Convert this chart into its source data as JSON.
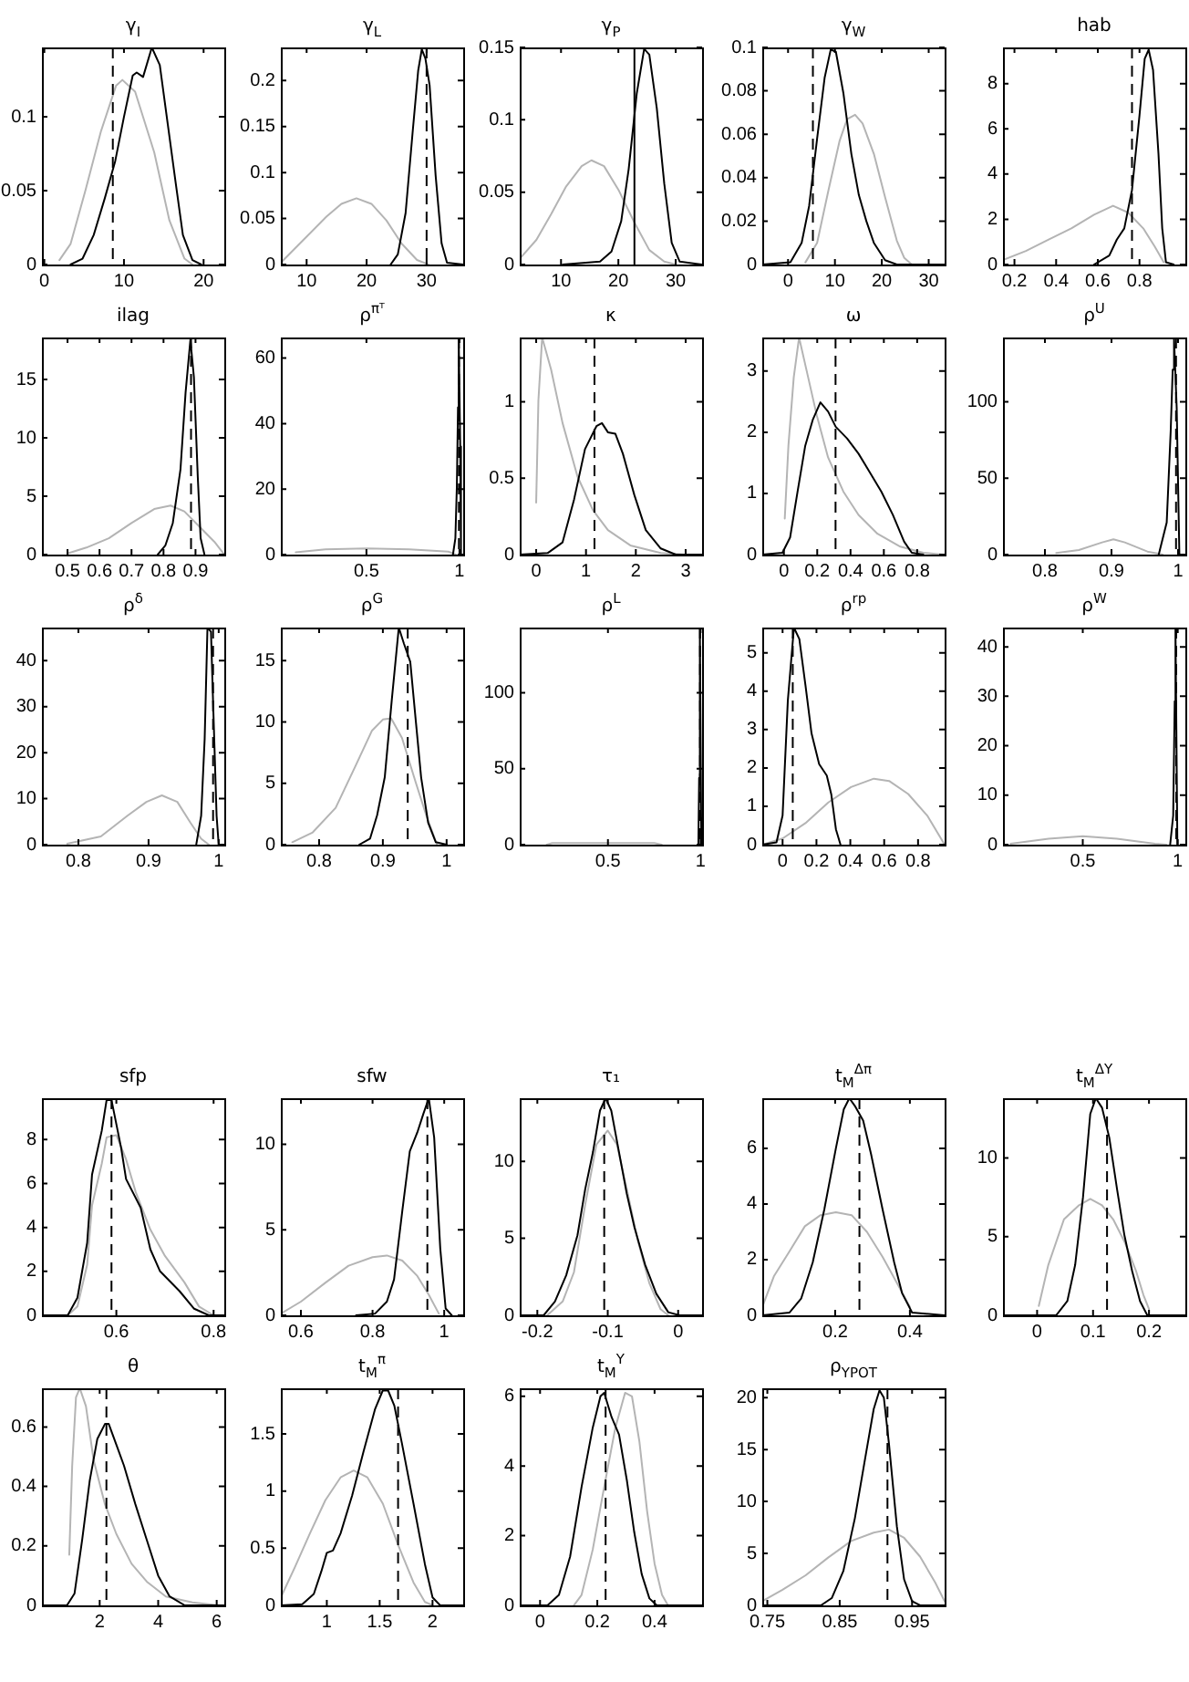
{
  "chart_data": [
    {
      "type": "line",
      "title": "γ$_{I}$",
      "xlim": [
        -0.3,
        22.6
      ],
      "ylim": [
        0,
        0.147
      ],
      "xticks": [
        0,
        10,
        20
      ],
      "yticks": [
        0,
        0.05,
        0.1
      ],
      "ref_lines": [
        {
          "axis": "x",
          "value": 8.6,
          "line_style": "dashed",
          "color": "#000000"
        }
      ],
      "series": [
        {
          "color": "#b4b4b4",
          "x": [
            1.9,
            3.3,
            5.2,
            7.1,
            9.0,
            9.8,
            11.4,
            13.8,
            15.7,
            17.6,
            18.6
          ],
          "values": [
            0.003,
            0.014,
            0.051,
            0.09,
            0.121,
            0.125,
            0.117,
            0.076,
            0.03,
            0.004,
            0
          ]
        },
        {
          "color": "#000000",
          "x": [
            3.3,
            4.8,
            6.2,
            7.6,
            8.9,
            10.0,
            11.1,
            11.6,
            12.4,
            13.5,
            14.5,
            15.5,
            16.5,
            17.4,
            18.6,
            19.7
          ],
          "values": [
            0,
            0.004,
            0.02,
            0.045,
            0.07,
            0.1,
            0.128,
            0.13,
            0.127,
            0.147,
            0.135,
            0.095,
            0.055,
            0.02,
            0.003,
            0
          ]
        }
      ]
    },
    {
      "type": "line",
      "title": "γ$_{L}$",
      "xlim": [
        5.7,
        36.1
      ],
      "ylim": [
        0,
        0.236
      ],
      "xticks": [
        10,
        20,
        30
      ],
      "yticks": [
        0,
        0.05,
        0.1,
        0.15,
        0.2
      ],
      "ref_lines": [
        {
          "axis": "x",
          "value": 30.0,
          "line_style": "dashed",
          "color": "#000000"
        }
      ],
      "series": [
        {
          "color": "#b4b4b4",
          "x": [
            5.7,
            9.5,
            13.3,
            15.8,
            18.3,
            20.8,
            23.3,
            25.8,
            28.4,
            30.3
          ],
          "values": [
            0.002,
            0.027,
            0.052,
            0.066,
            0.072,
            0.066,
            0.048,
            0.023,
            0.005,
            0
          ]
        },
        {
          "color": "#000000",
          "x": [
            24.0,
            25.2,
            26.5,
            27.7,
            28.6,
            29.2,
            29.8,
            30.5,
            31.5,
            32.5,
            33.4,
            36.1
          ],
          "values": [
            0,
            0.011,
            0.056,
            0.146,
            0.211,
            0.234,
            0.224,
            0.195,
            0.097,
            0.023,
            0.002,
            0
          ]
        }
      ]
    },
    {
      "type": "line",
      "title": "γ$_{P}$",
      "xlim": [
        2.8,
        34.6
      ],
      "ylim": [
        0,
        0.15
      ],
      "xticks": [
        10,
        20,
        30
      ],
      "yticks": [
        0,
        0.05,
        0.1,
        0.15
      ],
      "ref_lines": [
        {
          "axis": "x",
          "value": 22.8,
          "line_style": "solid",
          "color": "#000000"
        }
      ],
      "series": [
        {
          "color": "#b4b4b4",
          "x": [
            2.8,
            5.7,
            8.3,
            10.9,
            13.6,
            15.3,
            17.5,
            20.1,
            22.8,
            25.4,
            28.0,
            30.0
          ],
          "values": [
            0.004,
            0.017,
            0.035,
            0.054,
            0.068,
            0.072,
            0.068,
            0.051,
            0.029,
            0.01,
            0.002,
            0
          ]
        },
        {
          "color": "#000000",
          "x": [
            10.3,
            16.8,
            18.8,
            20.5,
            21.8,
            23.2,
            24.5,
            25.4,
            26.7,
            28.0,
            29.3,
            30.7,
            34.6
          ],
          "values": [
            0,
            0.002,
            0.009,
            0.03,
            0.066,
            0.118,
            0.149,
            0.145,
            0.108,
            0.056,
            0.015,
            0.002,
            0
          ]
        }
      ]
    },
    {
      "type": "line",
      "title": "γ$_{W}$",
      "xlim": [
        -5.5,
        33.4
      ],
      "ylim": [
        0,
        0.1
      ],
      "xticks": [
        0,
        10,
        20,
        30
      ],
      "yticks": [
        0,
        0.02,
        0.04,
        0.06,
        0.08,
        0.1
      ],
      "ref_lines": [
        {
          "axis": "x",
          "value": 5.3,
          "line_style": "dashed",
          "color": "#000000"
        }
      ],
      "series": [
        {
          "color": "#b4b4b4",
          "x": [
            3.7,
            6.2,
            8.6,
            11.0,
            12.6,
            14.3,
            15.9,
            18.3,
            20.7,
            23.2,
            24.8,
            26.4
          ],
          "values": [
            0.001,
            0.01,
            0.034,
            0.057,
            0.067,
            0.069,
            0.065,
            0.051,
            0.031,
            0.011,
            0.003,
            0
          ]
        },
        {
          "color": "#000000",
          "x": [
            -5.5,
            0.5,
            2.9,
            4.5,
            6.2,
            7.8,
            9.1,
            10.2,
            11.8,
            13.5,
            15.1,
            16.7,
            18.3,
            20.7,
            23.2,
            33.4
          ],
          "values": [
            0,
            0.001,
            0.01,
            0.027,
            0.058,
            0.086,
            0.099,
            0.098,
            0.079,
            0.051,
            0.032,
            0.02,
            0.01,
            0.002,
            0,
            0
          ]
        }
      ]
    },
    {
      "type": "line",
      "title": "hab",
      "xlim": [
        0.145,
        1.02
      ],
      "ylim": [
        0,
        9.6
      ],
      "xticks": [
        0.2,
        0.4,
        0.6,
        0.8
      ],
      "yticks": [
        0,
        2,
        4,
        6,
        8
      ],
      "ref_lines": [
        {
          "axis": "x",
          "value": 0.764,
          "line_style": "dashed",
          "color": "#000000"
        }
      ],
      "series": [
        {
          "color": "#b4b4b4",
          "x": [
            0.145,
            0.255,
            0.364,
            0.473,
            0.582,
            0.673,
            0.745,
            0.818,
            0.873,
            0.916
          ],
          "values": [
            0.2,
            0.6,
            1.1,
            1.6,
            2.2,
            2.6,
            2.3,
            1.6,
            0.8,
            0.1
          ]
        },
        {
          "color": "#000000",
          "x": [
            0.582,
            0.655,
            0.691,
            0.727,
            0.764,
            0.8,
            0.825,
            0.844,
            0.865,
            0.891,
            0.909,
            0.927,
            0.964
          ],
          "values": [
            0,
            0.4,
            1.1,
            1.6,
            3.3,
            6.6,
            9.1,
            9.5,
            8.6,
            4.9,
            1.6,
            0.1,
            0
          ]
        }
      ]
    },
    {
      "type": "line",
      "title": "ilag",
      "xlim": [
        0.42,
        0.99
      ],
      "ylim": [
        0,
        18.6
      ],
      "xticks": [
        0.5,
        0.6,
        0.7,
        0.8,
        0.9
      ],
      "yticks": [
        0,
        5,
        10,
        15
      ],
      "ref_lines": [
        {
          "axis": "x",
          "value": 0.886,
          "line_style": "dashed",
          "color": "#000000"
        }
      ],
      "series": [
        {
          "color": "#b4b4b4",
          "x": [
            0.5,
            0.559,
            0.629,
            0.7,
            0.771,
            0.822,
            0.865,
            0.912,
            0.959,
            0.987
          ],
          "values": [
            0.1,
            0.6,
            1.4,
            2.7,
            3.9,
            4.2,
            3.7,
            2.4,
            1.1,
            0.1
          ]
        },
        {
          "color": "#000000",
          "x": [
            0.782,
            0.806,
            0.829,
            0.853,
            0.869,
            0.884,
            0.895,
            0.907,
            0.916,
            0.928
          ],
          "values": [
            0,
            0.8,
            2.7,
            7.3,
            13.9,
            18.4,
            15.2,
            6.7,
            1.4,
            0
          ]
        }
      ]
    },
    {
      "type": "line",
      "title": "ρ$^{πᵀ}$",
      "xlim": [
        0.04,
        1.02
      ],
      "ylim": [
        0,
        66.3
      ],
      "xticks": [
        0.5,
        1
      ],
      "yticks": [
        0,
        20,
        40,
        60
      ],
      "ref_lines": [
        {
          "axis": "x",
          "value": 0.997,
          "line_style": "dashed",
          "color": "#000000"
        }
      ],
      "series": [
        {
          "color": "#b4b4b4",
          "x": [
            0.12,
            0.28,
            0.5,
            0.73,
            0.94,
            0.98
          ],
          "values": [
            0.7,
            1.6,
            1.9,
            1.6,
            0.9,
            0
          ]
        },
        {
          "color": "#000000",
          "x": [
            0.965,
            0.978,
            0.986,
            0.992,
            0.996,
            1.004,
            1.008
          ],
          "values": [
            0,
            5,
            21,
            45,
            66,
            33,
            0
          ]
        }
      ]
    },
    {
      "type": "line",
      "title": "κ",
      "xlim": [
        -0.33,
        3.33
      ],
      "ylim": [
        0,
        1.42
      ],
      "xticks": [
        0,
        1,
        2,
        3
      ],
      "yticks": [
        0,
        0.5,
        1
      ],
      "ref_lines": [
        {
          "axis": "x",
          "value": 1.17,
          "line_style": "dashed",
          "color": "#000000"
        }
      ],
      "series": [
        {
          "color": "#b4b4b4",
          "x": [
            0,
            0.045,
            0.12,
            0.3,
            0.53,
            0.83,
            1.14,
            1.44,
            1.89,
            2.5,
            2.95
          ],
          "values": [
            0.34,
            1.01,
            1.42,
            1.21,
            0.86,
            0.51,
            0.29,
            0.16,
            0.06,
            0.01,
            0
          ]
        },
        {
          "color": "#000000",
          "x": [
            -0.33,
            0.23,
            0.53,
            0.76,
            0.98,
            1.21,
            1.32,
            1.44,
            1.59,
            1.74,
            1.97,
            2.2,
            2.5,
            2.8,
            3.33
          ],
          "values": [
            0,
            0.01,
            0.08,
            0.36,
            0.69,
            0.84,
            0.86,
            0.8,
            0.79,
            0.66,
            0.39,
            0.16,
            0.04,
            0,
            0
          ]
        }
      ]
    },
    {
      "type": "line",
      "title": "ω",
      "xlim": [
        -0.13,
        0.965
      ],
      "ylim": [
        0,
        3.55
      ],
      "xticks": [
        0,
        0.2,
        0.4,
        0.6,
        0.8
      ],
      "yticks": [
        0,
        1,
        2,
        3
      ],
      "ref_lines": [
        {
          "axis": "x",
          "value": 0.31,
          "line_style": "dashed",
          "color": "#000000"
        }
      ],
      "series": [
        {
          "color": "#b4b4b4",
          "x": [
            0.005,
            0.027,
            0.059,
            0.091,
            0.137,
            0.197,
            0.265,
            0.357,
            0.448,
            0.562,
            0.699,
            0.837,
            0.951
          ],
          "values": [
            0.59,
            1.78,
            2.9,
            3.55,
            3.0,
            2.28,
            1.59,
            1.03,
            0.65,
            0.34,
            0.13,
            0.03,
            0
          ]
        },
        {
          "color": "#000000",
          "x": [
            -0.13,
            -0.009,
            0.037,
            0.082,
            0.128,
            0.174,
            0.219,
            0.265,
            0.311,
            0.379,
            0.448,
            0.517,
            0.585,
            0.654,
            0.722,
            0.768,
            0.837
          ],
          "values": [
            0,
            0.03,
            0.28,
            1.03,
            1.78,
            2.21,
            2.49,
            2.34,
            2.09,
            1.9,
            1.65,
            1.34,
            1.03,
            0.65,
            0.21,
            0.03,
            0
          ]
        }
      ]
    },
    {
      "type": "line",
      "title": "ρ$^{U}$",
      "xlim": [
        0.737,
        1.011
      ],
      "ylim": [
        0,
        142
      ],
      "xticks": [
        0.8,
        0.9,
        1
      ],
      "yticks": [
        0,
        50,
        100
      ],
      "ref_lines": [
        {
          "axis": "x",
          "value": 0.997,
          "line_style": "dashed",
          "color": "#000000"
        }
      ],
      "series": [
        {
          "color": "#b4b4b4",
          "x": [
            0.817,
            0.851,
            0.886,
            0.903,
            0.92,
            0.954,
            0.977
          ],
          "values": [
            1,
            3,
            8,
            10,
            8,
            2,
            0
          ]
        },
        {
          "color": "#000000",
          "x": [
            0.971,
            0.983,
            0.989,
            0.992,
            0.994,
            0.998,
            1.002
          ],
          "values": [
            0,
            21,
            81,
            121,
            141,
            96,
            0
          ]
        }
      ]
    },
    {
      "type": "line",
      "title": "ρ$^{δ}$",
      "xlim": [
        0.748,
        1.008
      ],
      "ylim": [
        0,
        47.2
      ],
      "xticks": [
        0.8,
        0.9,
        1
      ],
      "yticks": [
        0,
        10,
        20,
        30,
        40
      ],
      "ref_lines": [
        {
          "axis": "x",
          "value": 0.992,
          "line_style": "dashed",
          "color": "#000000"
        }
      ],
      "series": [
        {
          "color": "#b4b4b4",
          "x": [
            0.784,
            0.832,
            0.87,
            0.897,
            0.919,
            0.941,
            0.96,
            0.975,
            0.986
          ],
          "values": [
            0.2,
            1.8,
            6.3,
            9.3,
            10.7,
            9.3,
            4.7,
            1.3,
            0
          ]
        },
        {
          "color": "#000000",
          "x": [
            0.968,
            0.975,
            0.98,
            0.984,
            0.989,
            0.992,
            0.997,
            1.0
          ],
          "values": [
            0,
            6.3,
            23,
            47.2,
            46.3,
            31,
            6.3,
            0
          ]
        }
      ]
    },
    {
      "type": "line",
      "title": "ρ$^{G}$",
      "xlim": [
        0.74,
        1.026
      ],
      "ylim": [
        0,
        17.7
      ],
      "xticks": [
        0.8,
        0.9,
        1
      ],
      "yticks": [
        0,
        5,
        10,
        15
      ],
      "ref_lines": [
        {
          "axis": "x",
          "value": 0.939,
          "line_style": "dashed",
          "color": "#000000"
        }
      ],
      "series": [
        {
          "color": "#b4b4b4",
          "x": [
            0.758,
            0.79,
            0.826,
            0.857,
            0.883,
            0.9,
            0.913,
            0.93,
            0.952,
            0.968,
            0.985
          ],
          "values": [
            0.2,
            1.0,
            3.0,
            6.4,
            9.3,
            10.2,
            10.3,
            8.7,
            5.0,
            2.4,
            0
          ]
        },
        {
          "color": "#000000",
          "x": [
            0.863,
            0.88,
            0.891,
            0.903,
            0.914,
            0.925,
            0.933,
            0.943,
            0.952,
            0.96,
            0.971,
            0.983,
            1.0
          ],
          "values": [
            0,
            0.5,
            2.4,
            5.5,
            11.8,
            17.7,
            16.4,
            14.9,
            9.9,
            5.5,
            1.8,
            0.2,
            0
          ]
        }
      ]
    },
    {
      "type": "line",
      "title": "ρ$^{L}$",
      "xlim": [
        0.024,
        1.008
      ],
      "ylim": [
        0,
        143
      ],
      "xticks": [
        0.5,
        1
      ],
      "yticks": [
        0,
        50,
        100
      ],
      "ref_lines": [
        {
          "axis": "x",
          "value": 0.997,
          "line_style": "dashed",
          "color": "#000000"
        }
      ],
      "series": [
        {
          "color": "#b4b4b4",
          "x": [
            0.17,
            0.2,
            0.5,
            0.75,
            0.79
          ],
          "values": [
            0,
            1,
            1,
            1,
            0
          ]
        },
        {
          "color": "#000000",
          "x": [
            0.988,
            0.992,
            0.996,
            1.004
          ],
          "values": [
            0,
            44,
            143,
            0
          ]
        }
      ]
    },
    {
      "type": "line",
      "title": "ρ$^{rp}$",
      "xlim": [
        -0.12,
        0.957
      ],
      "ylim": [
        0,
        5.66
      ],
      "xticks": [
        0,
        0.2,
        0.4,
        0.6,
        0.8
      ],
      "yticks": [
        0,
        1,
        2,
        3,
        4,
        5
      ],
      "ref_lines": [
        {
          "axis": "x",
          "value": 0.06,
          "line_style": "dashed",
          "color": "#000000"
        }
      ],
      "series": [
        {
          "color": "#b4b4b4",
          "x": [
            -0.12,
            0,
            0.135,
            0.27,
            0.404,
            0.539,
            0.629,
            0.742,
            0.854,
            0.957
          ],
          "values": [
            0,
            0.16,
            0.56,
            1.1,
            1.5,
            1.72,
            1.66,
            1.32,
            0.76,
            0
          ]
        },
        {
          "color": "#000000",
          "x": [
            -0.12,
            -0.036,
            0,
            0.031,
            0.067,
            0.099,
            0.135,
            0.171,
            0.216,
            0.261,
            0.288,
            0.315,
            0.342
          ],
          "values": [
            0,
            0.06,
            0.76,
            3.76,
            5.66,
            5.36,
            4.16,
            2.9,
            2.1,
            1.8,
            1.3,
            0.4,
            0
          ]
        }
      ]
    },
    {
      "type": "line",
      "title": "ρ$^{W}$",
      "xlim": [
        0.08,
        1.04
      ],
      "ylim": [
        0,
        43.9
      ],
      "xticks": [
        0.5,
        1
      ],
      "yticks": [
        0,
        10,
        20,
        30,
        40
      ],
      "ref_lines": [
        {
          "axis": "x",
          "value": 0.992,
          "line_style": "dashed",
          "color": "#000000"
        }
      ],
      "series": [
        {
          "color": "#b4b4b4",
          "x": [
            0.12,
            0.32,
            0.5,
            0.68,
            0.88,
            0.94
          ],
          "values": [
            0.2,
            1.2,
            1.7,
            1.2,
            0.2,
            0
          ]
        },
        {
          "color": "#000000",
          "x": [
            0.96,
            0.976,
            0.984,
            0.988,
            0.998
          ],
          "values": [
            0,
            5.9,
            29,
            43.9,
            0
          ]
        }
      ]
    },
    {
      "type": "line",
      "title": "sfp",
      "xlim": [
        0.447,
        0.822
      ],
      "ylim": [
        0,
        9.88
      ],
      "xticks": [
        0.6,
        0.8
      ],
      "yticks": [
        0,
        2,
        4,
        6,
        8
      ],
      "ref_lines": [
        {
          "axis": "x",
          "value": 0.59,
          "line_style": "dashed",
          "color": "#000000"
        }
      ],
      "series": [
        {
          "color": "#b4b4b4",
          "x": [
            0.5,
            0.52,
            0.54,
            0.55,
            0.57,
            0.58,
            0.6,
            0.62,
            0.64,
            0.67,
            0.7,
            0.74,
            0.77,
            0.8
          ],
          "values": [
            0,
            0.4,
            2.3,
            5.0,
            6.9,
            8.1,
            8.2,
            7.1,
            5.6,
            3.9,
            2.7,
            1.5,
            0.4,
            0
          ]
        },
        {
          "color": "#000000",
          "x": [
            0.447,
            0.5,
            0.52,
            0.54,
            0.55,
            0.57,
            0.58,
            0.59,
            0.61,
            0.62,
            0.65,
            0.67,
            0.69,
            0.73,
            0.76,
            0.79,
            0.822
          ],
          "values": [
            0,
            0,
            0.8,
            3.3,
            6.4,
            8.4,
            9.8,
            9.8,
            7.6,
            6.2,
            4.9,
            3.0,
            2.0,
            1.1,
            0.3,
            0,
            0
          ]
        }
      ]
    },
    {
      "type": "line",
      "title": "sfw",
      "xlim": [
        0.544,
        1.053
      ],
      "ylim": [
        0,
        12.7
      ],
      "xticks": [
        0.6,
        0.8,
        1
      ],
      "yticks": [
        0,
        5,
        10
      ],
      "ref_lines": [
        {
          "axis": "x",
          "value": 0.953,
          "line_style": "dashed",
          "color": "#000000"
        }
      ],
      "series": [
        {
          "color": "#b4b4b4",
          "x": [
            0.544,
            0.6,
            0.668,
            0.733,
            0.8,
            0.84,
            0.883,
            0.925,
            0.957,
            0.985
          ],
          "values": [
            0.1,
            0.8,
            1.9,
            2.9,
            3.4,
            3.5,
            3.2,
            2.3,
            1.2,
            0.1
          ]
        },
        {
          "color": "#000000",
          "x": [
            0.754,
            0.807,
            0.84,
            0.86,
            0.883,
            0.904,
            0.925,
            0.942,
            0.957,
            0.972,
            0.989,
            1.004,
            1.021
          ],
          "values": [
            0,
            0.1,
            0.8,
            2.1,
            6.1,
            9.6,
            10.7,
            11.8,
            12.7,
            10.4,
            3.9,
            0.4,
            0
          ]
        }
      ]
    },
    {
      "type": "line",
      "title": "τ₁",
      "xlim": [
        -0.225,
        0.034
      ],
      "ylim": [
        0,
        14.1
      ],
      "xticks": [
        -0.2,
        -0.1,
        0
      ],
      "yticks": [
        0,
        5,
        10
      ],
      "ref_lines": [
        {
          "axis": "x",
          "value": -0.105,
          "line_style": "dashed",
          "color": "#000000"
        }
      ],
      "series": [
        {
          "color": "#b4b4b4",
          "x": [
            -0.186,
            -0.164,
            -0.148,
            -0.132,
            -0.116,
            -0.1,
            -0.087,
            -0.073,
            -0.057,
            -0.041,
            -0.025,
            -0.014
          ],
          "values": [
            0,
            0.9,
            2.8,
            7.2,
            11.1,
            12.0,
            11.1,
            8.2,
            4.8,
            2.1,
            0.4,
            0
          ]
        },
        {
          "color": "#000000",
          "x": [
            -0.225,
            -0.191,
            -0.175,
            -0.159,
            -0.143,
            -0.132,
            -0.121,
            -0.111,
            -0.103,
            -0.095,
            -0.084,
            -0.073,
            -0.062,
            -0.047,
            -0.031,
            -0.014,
            0.002,
            0.034
          ],
          "values": [
            0,
            0,
            0.9,
            2.6,
            5.2,
            8.2,
            10.6,
            13.3,
            14.1,
            13.3,
            10.6,
            7.9,
            5.7,
            3.3,
            1.4,
            0.2,
            0,
            0
          ]
        }
      ]
    },
    {
      "type": "line",
      "title": "t$_{M}$$^{Δπ}$",
      "xlim": [
        0.005,
        0.493
      ],
      "ylim": [
        0,
        7.8
      ],
      "xticks": [
        0.2,
        0.4
      ],
      "yticks": [
        0,
        2,
        4,
        6
      ],
      "ref_lines": [
        {
          "axis": "x",
          "value": 0.265,
          "line_style": "dashed",
          "color": "#000000"
        }
      ],
      "series": [
        {
          "color": "#b4b4b4",
          "x": [
            0.005,
            0.036,
            0.078,
            0.119,
            0.161,
            0.202,
            0.244,
            0.285,
            0.327,
            0.368,
            0.4
          ],
          "values": [
            0.3,
            1.4,
            2.3,
            3.2,
            3.6,
            3.7,
            3.6,
            3.0,
            2.1,
            1.1,
            0.3
          ]
        },
        {
          "color": "#000000",
          "x": [
            0.005,
            0.078,
            0.109,
            0.14,
            0.171,
            0.202,
            0.223,
            0.238,
            0.254,
            0.275,
            0.296,
            0.327,
            0.358,
            0.379,
            0.406,
            0.493
          ],
          "values": [
            0,
            0.1,
            0.6,
            1.9,
            3.8,
            6.0,
            7.4,
            7.8,
            7.5,
            7.0,
            5.8,
            3.8,
            1.9,
            0.8,
            0.1,
            0
          ]
        }
      ]
    },
    {
      "type": "line",
      "title": "t$_{M}$$^{ΔY}$",
      "xlim": [
        -0.061,
        0.265
      ],
      "ylim": [
        0,
        13.8
      ],
      "xticks": [
        0,
        0.1,
        0.2
      ],
      "yticks": [
        0,
        5,
        10
      ],
      "ref_lines": [
        {
          "axis": "x",
          "value": 0.125,
          "line_style": "dashed",
          "color": "#000000"
        }
      ],
      "series": [
        {
          "color": "#b4b4b4",
          "x": [
            0.003,
            0.02,
            0.048,
            0.075,
            0.095,
            0.116,
            0.136,
            0.156,
            0.177,
            0.19,
            0.2
          ],
          "values": [
            0.6,
            3.2,
            6.1,
            7.0,
            7.4,
            7.0,
            6.1,
            4.7,
            2.8,
            1.3,
            0.4
          ]
        },
        {
          "color": "#000000",
          "x": [
            -0.061,
            0.034,
            0.054,
            0.068,
            0.082,
            0.095,
            0.105,
            0.116,
            0.129,
            0.143,
            0.156,
            0.17,
            0.184,
            0.197,
            0.265
          ],
          "values": [
            0,
            0,
            0.9,
            3.2,
            7.5,
            12.8,
            13.8,
            13.2,
            11.3,
            8.0,
            5.1,
            2.8,
            0.9,
            0,
            0
          ]
        }
      ]
    },
    {
      "type": "line",
      "title": "θ",
      "xlim": [
        0.026,
        6.26
      ],
      "ylim": [
        0,
        0.73
      ],
      "xticks": [
        2,
        4,
        6
      ],
      "yticks": [
        0,
        0.2,
        0.4,
        0.6
      ],
      "ref_lines": [
        {
          "axis": "x",
          "value": 2.23,
          "line_style": "dashed",
          "color": "#000000"
        }
      ],
      "series": [
        {
          "color": "#b4b4b4",
          "x": [
            0.96,
            1.06,
            1.19,
            1.32,
            1.53,
            1.79,
            2.18,
            2.57,
            3.09,
            3.61,
            4.26,
            5.17,
            6.08
          ],
          "values": [
            0.17,
            0.47,
            0.7,
            0.73,
            0.67,
            0.49,
            0.34,
            0.24,
            0.14,
            0.08,
            0.03,
            0.01,
            0
          ]
        },
        {
          "color": "#000000",
          "x": [
            0.03,
            0.88,
            1.14,
            1.4,
            1.66,
            1.92,
            2.18,
            2.31,
            2.57,
            2.83,
            3.22,
            3.61,
            4.0,
            4.39,
            4.91,
            6.26
          ],
          "values": [
            0,
            0,
            0.04,
            0.22,
            0.42,
            0.56,
            0.61,
            0.61,
            0.54,
            0.47,
            0.34,
            0.22,
            0.1,
            0.03,
            0,
            0
          ]
        }
      ]
    },
    {
      "type": "line",
      "title": "t$_{M}$$^{π}$",
      "xlim": [
        0.565,
        2.29
      ],
      "ylim": [
        0,
        1.9
      ],
      "xticks": [
        1,
        1.5,
        2
      ],
      "yticks": [
        0,
        0.5,
        1,
        1.5
      ],
      "ref_lines": [
        {
          "axis": "x",
          "value": 1.674,
          "line_style": "dashed",
          "color": "#000000"
        }
      ],
      "series": [
        {
          "color": "#b4b4b4",
          "x": [
            0.565,
            0.696,
            0.84,
            0.986,
            1.13,
            1.254,
            1.384,
            1.53,
            1.674,
            1.82,
            1.928,
            2.0
          ],
          "values": [
            0.07,
            0.33,
            0.63,
            0.92,
            1.12,
            1.18,
            1.12,
            0.89,
            0.53,
            0.2,
            0.03,
            0
          ]
        },
        {
          "color": "#000000",
          "x": [
            0.565,
            0.768,
            0.877,
            0.949,
            1.0,
            1.058,
            1.13,
            1.239,
            1.348,
            1.457,
            1.529,
            1.58,
            1.638,
            1.71,
            1.82,
            1.928,
            2.0,
            2.072,
            2.29
          ],
          "values": [
            0,
            0.01,
            0.1,
            0.3,
            0.46,
            0.48,
            0.63,
            0.96,
            1.35,
            1.72,
            1.88,
            1.88,
            1.75,
            1.42,
            0.89,
            0.36,
            0.07,
            0,
            0
          ]
        }
      ]
    },
    {
      "type": "line",
      "title": "t$_{M}$$^{Y}$",
      "xlim": [
        -0.071,
        0.566
      ],
      "ylim": [
        0,
        6.23
      ],
      "xticks": [
        0,
        0.2,
        0.4
      ],
      "yticks": [
        0,
        2,
        4,
        6
      ],
      "ref_lines": [
        {
          "axis": "x",
          "value": 0.229,
          "line_style": "dashed",
          "color": "#000000"
        }
      ],
      "series": [
        {
          "color": "#b4b4b4",
          "x": [
            0.118,
            0.145,
            0.184,
            0.224,
            0.263,
            0.297,
            0.321,
            0.347,
            0.374,
            0.4,
            0.426,
            0.447
          ],
          "values": [
            0,
            0.3,
            1.6,
            3.4,
            5.1,
            6.1,
            6.0,
            4.7,
            2.7,
            1.2,
            0.3,
            0
          ]
        },
        {
          "color": "#000000",
          "x": [
            -0.071,
            0.026,
            0.066,
            0.105,
            0.145,
            0.184,
            0.211,
            0.224,
            0.25,
            0.276,
            0.303,
            0.329,
            0.355,
            0.382,
            0.408,
            0.566
          ],
          "values": [
            0,
            0,
            0.3,
            1.4,
            3.4,
            5.1,
            6.0,
            6.1,
            5.4,
            4.9,
            3.6,
            2.1,
            0.9,
            0.2,
            0,
            0
          ]
        }
      ]
    },
    {
      "type": "line",
      "title": "ρ$_{YPOT}$",
      "xlim": [
        0.743,
        0.995
      ],
      "ylim": [
        0,
        20.9
      ],
      "xticks": [
        0.75,
        0.85,
        0.95
      ],
      "yticks": [
        0,
        5,
        10,
        15,
        20
      ],
      "ref_lines": [
        {
          "axis": "x",
          "value": 0.916,
          "line_style": "dashed",
          "color": "#000000"
        }
      ],
      "series": [
        {
          "color": "#b4b4b4",
          "x": [
            0.743,
            0.771,
            0.803,
            0.834,
            0.866,
            0.897,
            0.918,
            0.939,
            0.961,
            0.982,
            0.995
          ],
          "values": [
            0.4,
            1.5,
            2.9,
            4.6,
            6.2,
            7.0,
            7.3,
            6.5,
            4.7,
            2.2,
            0.4
          ]
        },
        {
          "color": "#000000",
          "x": [
            0.743,
            0.824,
            0.839,
            0.855,
            0.871,
            0.887,
            0.897,
            0.905,
            0.911,
            0.918,
            0.929,
            0.939,
            0.95,
            0.961,
            0.995
          ],
          "values": [
            0,
            0,
            0.7,
            3.3,
            8.4,
            14.9,
            18.9,
            20.7,
            20.0,
            15.6,
            7.6,
            2.5,
            0.4,
            0,
            0
          ]
        }
      ]
    }
  ]
}
